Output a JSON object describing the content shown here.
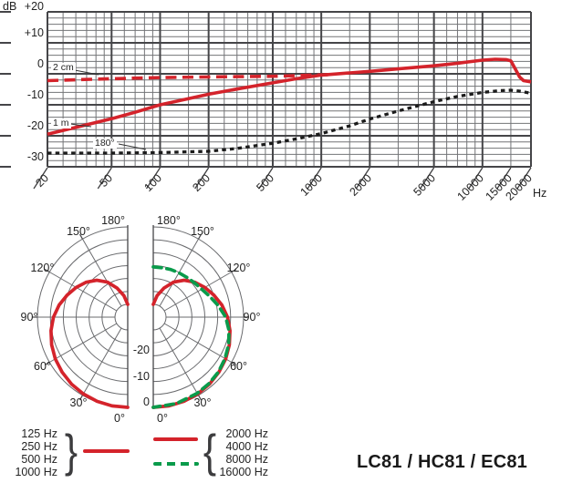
{
  "title": "LC81 / HC81 / EC81",
  "colors": {
    "red": "#d4232b",
    "green": "#0a9b4b",
    "black_curve": "#1b1b1b",
    "grid_minor": "#737477",
    "grid_major": "#454548",
    "polar_grid": "#6a6b6e",
    "text": "#232323"
  },
  "chart_data": [
    {
      "id": "frequency_response",
      "type": "line",
      "x_scale": "log",
      "x_unit": "Hz",
      "y_unit": "dB",
      "xlim": [
        20,
        20000
      ],
      "ylim": [
        -30,
        20
      ],
      "grid": true,
      "y_tick_labels": [
        "+20",
        "+10",
        "0",
        "-10",
        "-20",
        "-30"
      ],
      "y_tick_values": [
        20,
        10,
        0,
        -10,
        -20,
        -30
      ],
      "x_tick_labels": [
        "20",
        "50",
        "100",
        "200",
        "500",
        "1000",
        "2000",
        "5000",
        "10000",
        "15000",
        "20000"
      ],
      "x_tick_values": [
        20,
        50,
        100,
        200,
        500,
        1000,
        2000,
        5000,
        10000,
        15000,
        20000
      ],
      "x_major_gridlines": [
        20,
        50,
        100,
        200,
        500,
        1000,
        2000,
        5000,
        10000,
        20000
      ],
      "x_minor_gridlines": [
        25,
        30,
        35,
        40,
        45,
        60,
        70,
        80,
        90,
        150,
        250,
        300,
        350,
        400,
        450,
        600,
        700,
        800,
        900,
        1500,
        3000,
        4000,
        6000,
        7000,
        8000,
        9000,
        15000
      ],
      "series": [
        {
          "name": "2 cm",
          "style": "dashed",
          "color": "#d4232b",
          "points": [
            [
              20,
              -2.2
            ],
            [
              30,
              -1.9
            ],
            [
              50,
              -1.6
            ],
            [
              100,
              -1.2
            ],
            [
              200,
              -1.0
            ],
            [
              300,
              -0.9
            ],
            [
              500,
              -0.8
            ],
            [
              700,
              -0.6
            ],
            [
              900,
              -0.4
            ],
            [
              1100,
              -0.3
            ]
          ]
        },
        {
          "name": "1 m",
          "style": "solid",
          "color": "#d4232b",
          "points": [
            [
              20,
              -19.5
            ],
            [
              30,
              -17.3
            ],
            [
              50,
              -14.5
            ],
            [
              70,
              -12.4
            ],
            [
              100,
              -10.0
            ],
            [
              150,
              -8.0
            ],
            [
              200,
              -6.6
            ],
            [
              300,
              -4.9
            ],
            [
              500,
              -2.9
            ],
            [
              700,
              -1.6
            ],
            [
              1000,
              -0.4
            ],
            [
              1500,
              0.3
            ],
            [
              2000,
              0.8
            ],
            [
              3000,
              1.6
            ],
            [
              5000,
              2.6
            ],
            [
              7000,
              3.4
            ],
            [
              10000,
              4.4
            ],
            [
              12000,
              4.7
            ],
            [
              14000,
              4.6
            ],
            [
              15000,
              4.2
            ],
            [
              16000,
              1.5
            ],
            [
              17000,
              -1.0
            ],
            [
              18000,
              -2.2
            ],
            [
              20000,
              -2.6
            ]
          ]
        },
        {
          "name": "180°",
          "style": "dotted",
          "color": "#1b1b1b",
          "points": [
            [
              20,
              -25.6
            ],
            [
              50,
              -25.6
            ],
            [
              100,
              -25.4
            ],
            [
              200,
              -25.0
            ],
            [
              300,
              -24.1
            ],
            [
              500,
              -22.4
            ],
            [
              700,
              -21.0
            ],
            [
              1000,
              -19.3
            ],
            [
              1500,
              -16.8
            ],
            [
              2000,
              -14.6
            ],
            [
              3000,
              -12.0
            ],
            [
              5000,
              -9.0
            ],
            [
              7000,
              -7.3
            ],
            [
              10000,
              -6.0
            ],
            [
              13000,
              -5.4
            ],
            [
              15000,
              -5.3
            ],
            [
              17000,
              -5.6
            ],
            [
              20000,
              -6.3
            ]
          ]
        }
      ]
    },
    {
      "id": "polar_pattern",
      "type": "polar",
      "min_db": -30,
      "db_rings": [
        0,
        -5,
        -10,
        -15,
        -20,
        -25,
        -30
      ],
      "ring_labels": [
        "-20",
        "-10",
        "0"
      ],
      "ring_label_values": [
        -20,
        -10,
        0
      ],
      "angle_step": 30,
      "angle_labels": [
        "0°",
        "30°",
        "60°",
        "90°",
        "120°",
        "150°",
        "180°"
      ],
      "halves": [
        {
          "side": "left",
          "series": [
            {
              "name": "125-1000 Hz",
              "style": "solid",
              "color": "#d4232b",
              "points": [
                [
                  180,
                  -30
                ],
                [
                  170,
                  -26.5
                ],
                [
                  160,
                  -23
                ],
                [
                  150,
                  -19.3
                ],
                [
                  140,
                  -16.3
                ],
                [
                  130,
                  -13.9
                ],
                [
                  120,
                  -11.9
                ],
                [
                  110,
                  -10.0
                ],
                [
                  100,
                  -8.0
                ],
                [
                  90,
                  -6.2
                ],
                [
                  80,
                  -4.8
                ],
                [
                  70,
                  -3.6
                ],
                [
                  60,
                  -2.6
                ],
                [
                  50,
                  -1.8
                ],
                [
                  40,
                  -1.1
                ],
                [
                  30,
                  -0.6
                ],
                [
                  20,
                  -0.25
                ],
                [
                  10,
                  -0.05
                ],
                [
                  0,
                  0
                ]
              ]
            }
          ]
        },
        {
          "side": "right",
          "series": [
            {
              "name": "2000-4000 Hz",
              "style": "solid",
              "color": "#d4232b",
              "points": [
                [
                  180,
                  -30
                ],
                [
                  170,
                  -26.5
                ],
                [
                  160,
                  -23
                ],
                [
                  150,
                  -19.3
                ],
                [
                  140,
                  -16.3
                ],
                [
                  130,
                  -13.9
                ],
                [
                  120,
                  -11.9
                ],
                [
                  110,
                  -10.0
                ],
                [
                  100,
                  -8.0
                ],
                [
                  90,
                  -6.2
                ],
                [
                  80,
                  -4.8
                ],
                [
                  70,
                  -3.6
                ],
                [
                  60,
                  -2.6
                ],
                [
                  50,
                  -1.8
                ],
                [
                  40,
                  -1.1
                ],
                [
                  30,
                  -0.6
                ],
                [
                  20,
                  -0.25
                ],
                [
                  10,
                  -0.05
                ],
                [
                  0,
                  0
                ]
              ]
            },
            {
              "name": "8000-16000 Hz",
              "style": "dashed",
              "color": "#0a9b4b",
              "points": [
                [
                  180,
                  -15.5
                ],
                [
                  170,
                  -15.5
                ],
                [
                  160,
                  -15.3
                ],
                [
                  150,
                  -15.1
                ],
                [
                  140,
                  -14.8
                ],
                [
                  130,
                  -14.2
                ],
                [
                  120,
                  -13.3
                ],
                [
                  110,
                  -11.6
                ],
                [
                  100,
                  -9.4
                ],
                [
                  90,
                  -6.9
                ],
                [
                  80,
                  -5.2
                ],
                [
                  70,
                  -3.9
                ],
                [
                  60,
                  -2.9
                ],
                [
                  50,
                  -2.0
                ],
                [
                  40,
                  -1.4
                ],
                [
                  30,
                  -0.9
                ],
                [
                  15,
                  -0.3
                ],
                [
                  0,
                  0
                ]
              ]
            }
          ]
        }
      ]
    }
  ],
  "legend": {
    "left": {
      "labels": [
        "125 Hz",
        "250 Hz",
        "500 Hz",
        "1000 Hz"
      ],
      "brace": "}",
      "swatch": {
        "style": "solid",
        "color": "#d4232b"
      }
    },
    "right": {
      "labels": [
        "2000 Hz",
        "4000 Hz",
        "8000 Hz",
        "16000 Hz"
      ],
      "brace": "{",
      "swatches": [
        {
          "style": "solid",
          "color": "#d4232b"
        },
        {
          "style": "dashed",
          "color": "#0a9b4b"
        }
      ]
    }
  }
}
